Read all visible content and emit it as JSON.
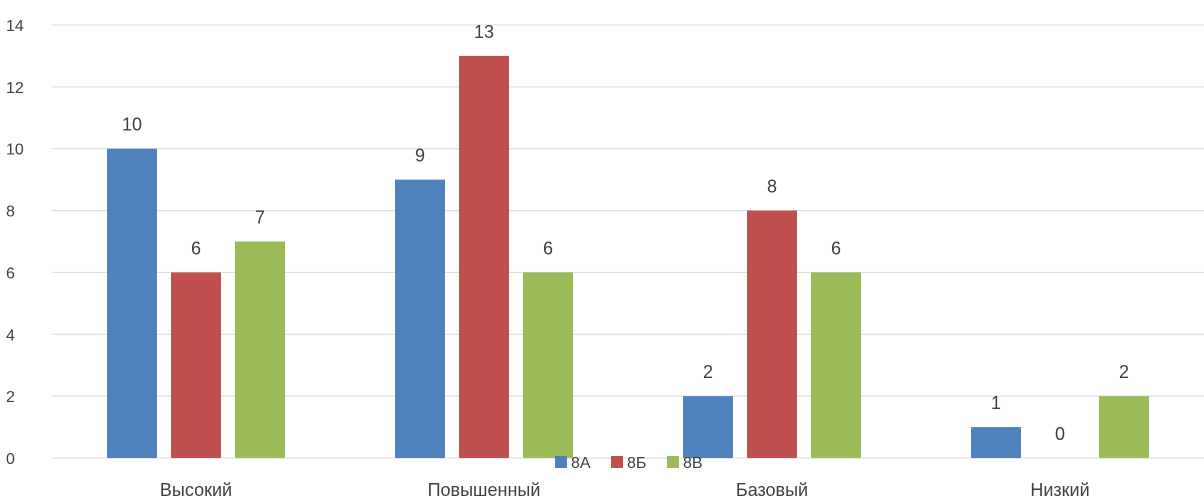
{
  "chart_data": {
    "type": "bar",
    "categories": [
      "Высокий",
      "Повышенный",
      "Базовый",
      "Низкий"
    ],
    "series": [
      {
        "name": "8А",
        "values": [
          10,
          9,
          2,
          1
        ],
        "color": "#4f81bd"
      },
      {
        "name": "8Б",
        "values": [
          6,
          13,
          8,
          0
        ],
        "color": "#c0504d"
      },
      {
        "name": "8В",
        "values": [
          7,
          6,
          6,
          2
        ],
        "color": "#9bbb59"
      }
    ],
    "ylim": [
      0,
      14
    ],
    "yticks": [
      0,
      2,
      4,
      6,
      8,
      10,
      12,
      14
    ],
    "grid": true,
    "legend_position": "bottom",
    "data_labels": true
  }
}
